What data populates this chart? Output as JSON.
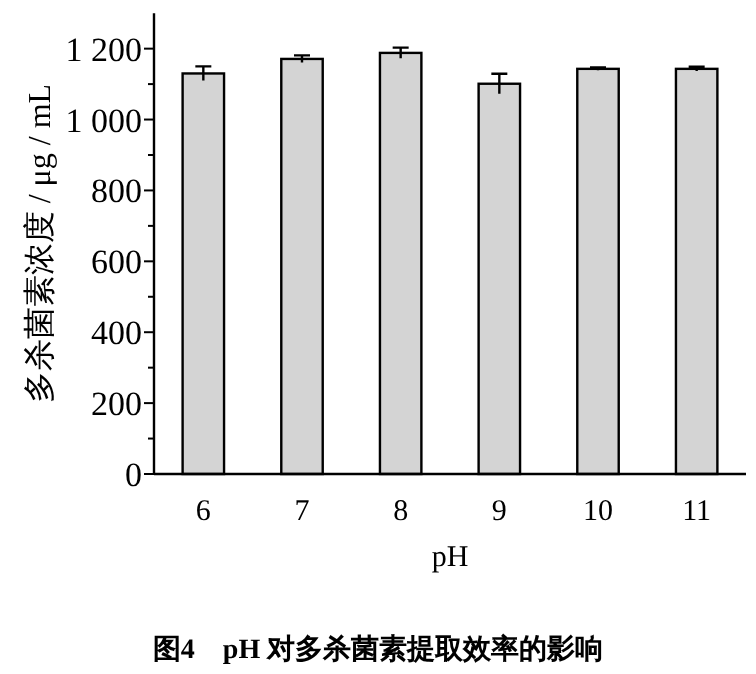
{
  "chart_data": {
    "type": "bar",
    "title": "图4　pH 对多杀菌素提取效率的影响",
    "xlabel": "pH",
    "ylabel": "多杀菌素浓度 / μg / mL",
    "categories": [
      "6",
      "7",
      "8",
      "9",
      "10",
      "11"
    ],
    "values": [
      1130,
      1171,
      1188,
      1101,
      1143,
      1143
    ],
    "errors": [
      20,
      10,
      15,
      28,
      4,
      6
    ],
    "color": "#d4d4d4",
    "ylim": [
      0,
      1300
    ],
    "yticks": [
      0,
      {
        "value": 100,
        "label": null
      },
      200,
      {
        "value": 300,
        "label": null
      },
      400,
      {
        "value": 500,
        "label": null
      },
      600,
      {
        "value": 700,
        "label": null
      },
      800,
      {
        "value": 900,
        "label": null
      },
      {
        "value": 1000,
        "label": "1 000"
      },
      {
        "value": 1100,
        "label": null
      },
      {
        "value": 1200,
        "label": "1 200"
      }
    ],
    "marker": "none"
  }
}
